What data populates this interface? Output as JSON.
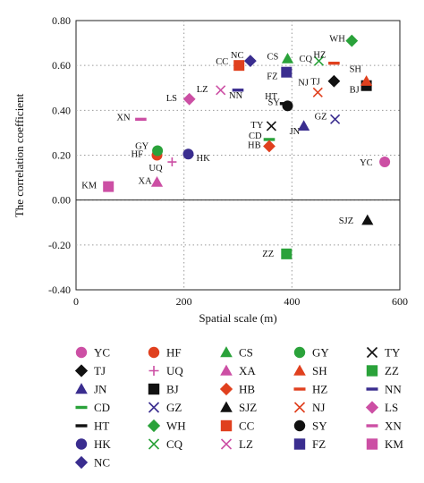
{
  "chart_data": {
    "type": "scatter",
    "title": "",
    "xlabel": "Spatial scale (m)",
    "ylabel": "The correlation coefficient",
    "xlim": [
      0,
      600
    ],
    "ylim": [
      -0.4,
      0.8
    ],
    "xticks": [
      "0",
      "200",
      "400",
      "600"
    ],
    "yticks": [
      "-0.40",
      "-0.20",
      "0.00",
      "0.20",
      "0.40",
      "0.60",
      "0.80"
    ],
    "grid": "dotted",
    "legend_position": "bottom",
    "points": [
      {
        "name": "YC",
        "x": 572,
        "y": 0.17,
        "marker": "circle",
        "color": "#cc4fa4"
      },
      {
        "name": "TJ",
        "x": 478,
        "y": 0.53,
        "marker": "diamond",
        "color": "#111111"
      },
      {
        "name": "JN",
        "x": 422,
        "y": 0.33,
        "marker": "triangle",
        "color": "#3a2d8f"
      },
      {
        "name": "CD",
        "x": 358,
        "y": 0.27,
        "marker": "dash",
        "color": "#2aa23a"
      },
      {
        "name": "HT",
        "x": 388,
        "y": 0.43,
        "marker": "dash",
        "color": "#111111"
      },
      {
        "name": "HK",
        "x": 208,
        "y": 0.205,
        "marker": "circle",
        "color": "#3a2d8f"
      },
      {
        "name": "NC",
        "x": 323,
        "y": 0.62,
        "marker": "diamond",
        "color": "#3a2d8f"
      },
      {
        "name": "HF",
        "x": 150,
        "y": 0.2,
        "marker": "circle",
        "color": "#e0401e"
      },
      {
        "name": "UQ",
        "x": 178,
        "y": 0.17,
        "marker": "plus",
        "color": "#cc4fa4"
      },
      {
        "name": "BJ",
        "x": 538,
        "y": 0.51,
        "marker": "square",
        "color": "#111111"
      },
      {
        "name": "GZ",
        "x": 480,
        "y": 0.36,
        "marker": "x",
        "color": "#3a2d8f"
      },
      {
        "name": "WH",
        "x": 511,
        "y": 0.71,
        "marker": "diamond",
        "color": "#2aa23a"
      },
      {
        "name": "CQ",
        "x": 450,
        "y": 0.62,
        "marker": "x",
        "color": "#2aa23a"
      },
      {
        "name": "CS",
        "x": 392,
        "y": 0.63,
        "marker": "triangle",
        "color": "#2aa23a"
      },
      {
        "name": "XA",
        "x": 150,
        "y": 0.08,
        "marker": "triangle",
        "color": "#cc4fa4"
      },
      {
        "name": "HB",
        "x": 358,
        "y": 0.24,
        "marker": "diamond",
        "color": "#e0401e"
      },
      {
        "name": "SJZ",
        "x": 540,
        "y": -0.09,
        "marker": "triangle",
        "color": "#111111"
      },
      {
        "name": "CC",
        "x": 302,
        "y": 0.6,
        "marker": "square",
        "color": "#e0401e"
      },
      {
        "name": "LZ",
        "x": 268,
        "y": 0.49,
        "marker": "x",
        "color": "#cc4fa4"
      },
      {
        "name": "GY",
        "x": 151,
        "y": 0.22,
        "marker": "circle",
        "color": "#2aa23a"
      },
      {
        "name": "SH",
        "x": 538,
        "y": 0.53,
        "marker": "triangle",
        "color": "#e0401e"
      },
      {
        "name": "HZ",
        "x": 478,
        "y": 0.61,
        "marker": "dash",
        "color": "#e0401e"
      },
      {
        "name": "NJ",
        "x": 448,
        "y": 0.48,
        "marker": "x",
        "color": "#e0401e"
      },
      {
        "name": "SY",
        "x": 392,
        "y": 0.42,
        "marker": "circle",
        "color": "#111111"
      },
      {
        "name": "FZ",
        "x": 390,
        "y": 0.57,
        "marker": "square",
        "color": "#3a2d8f"
      },
      {
        "name": "TY",
        "x": 362,
        "y": 0.33,
        "marker": "x",
        "color": "#111111"
      },
      {
        "name": "ZZ",
        "x": 390,
        "y": -0.24,
        "marker": "square",
        "color": "#2aa23a"
      },
      {
        "name": "NN",
        "x": 300,
        "y": 0.49,
        "marker": "dash",
        "color": "#3a2d8f"
      },
      {
        "name": "LS",
        "x": 210,
        "y": 0.45,
        "marker": "diamond",
        "color": "#cc4fa4"
      },
      {
        "name": "XN",
        "x": 120,
        "y": 0.36,
        "marker": "dash",
        "color": "#cc4fa4"
      },
      {
        "name": "KM",
        "x": 60,
        "y": 0.06,
        "marker": "square",
        "color": "#cc4fa4"
      }
    ],
    "legend_rows": [
      [
        "YC",
        "HF",
        "CS",
        "GY",
        "TY"
      ],
      [
        "TJ",
        "UQ",
        "XA",
        "SH",
        "ZZ"
      ],
      [
        "JN",
        "BJ",
        "HB",
        "HZ",
        "NN"
      ],
      [
        "CD",
        "GZ",
        "SJZ",
        "NJ",
        "LS"
      ],
      [
        "HT",
        "WH",
        "CC",
        "SY",
        "XN"
      ],
      [
        "HK",
        "CQ",
        "LZ",
        "FZ",
        "KM"
      ],
      [
        "NC"
      ]
    ]
  }
}
